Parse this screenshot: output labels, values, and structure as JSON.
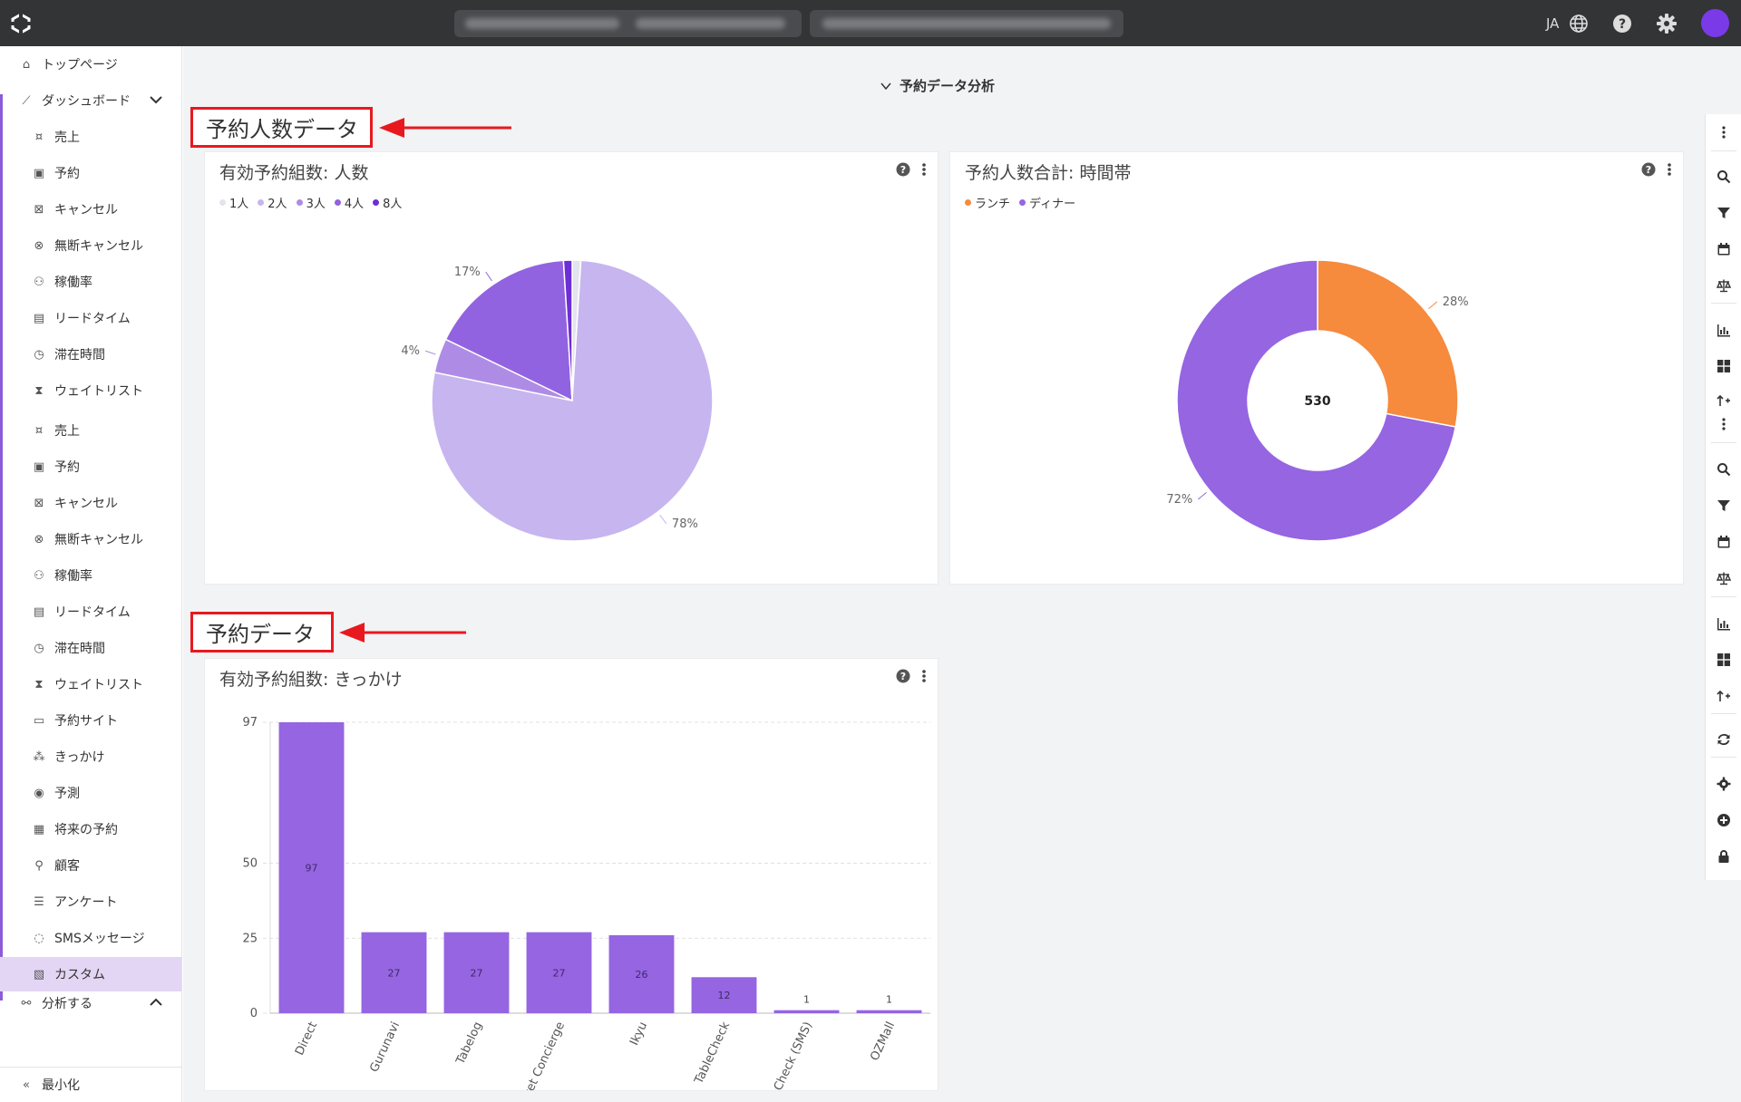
{
  "topbar": {
    "lang": "JA",
    "accent_color": "#7b3ae8"
  },
  "sidebar": {
    "items": [
      {
        "label": "トップページ",
        "icon": "home-icon"
      },
      {
        "label": "ダッシュボード",
        "icon": "chart-line-icon"
      },
      {
        "label": "売上",
        "icon": "cash-icon"
      },
      {
        "label": "予約",
        "icon": "calendar-check-icon"
      },
      {
        "label": "キャンセル",
        "icon": "calendar-x-icon"
      },
      {
        "label": "無断キャンセル",
        "icon": "circle-x-icon"
      },
      {
        "label": "稼働率",
        "icon": "people-icon"
      },
      {
        "label": "リードタイム",
        "icon": "calendar-icon"
      },
      {
        "label": "滞在時間",
        "icon": "timer-icon"
      },
      {
        "label": "ウェイトリスト",
        "icon": "hourglass-icon"
      },
      {
        "label": "売上",
        "icon": "cash-icon"
      },
      {
        "label": "予約",
        "icon": "calendar-check-icon"
      },
      {
        "label": "キャンセル",
        "icon": "calendar-x-icon"
      },
      {
        "label": "無断キャンセル",
        "icon": "circle-x-icon"
      },
      {
        "label": "稼働率",
        "icon": "people-icon"
      },
      {
        "label": "リードタイム",
        "icon": "calendar-icon"
      },
      {
        "label": "滞在時間",
        "icon": "timer-icon"
      },
      {
        "label": "ウェイトリスト",
        "icon": "hourglass-icon"
      },
      {
        "label": "予約サイト",
        "icon": "monitor-icon"
      },
      {
        "label": "きっかけ",
        "icon": "network-icon"
      },
      {
        "label": "予測",
        "icon": "eye-icon"
      },
      {
        "label": "将来の予約",
        "icon": "calendar-future-icon"
      },
      {
        "label": "顧客",
        "icon": "user-icon"
      },
      {
        "label": "アンケート",
        "icon": "survey-icon"
      },
      {
        "label": "SMSメッセージ",
        "icon": "chat-icon"
      },
      {
        "label": "カスタム",
        "icon": "custom-icon"
      },
      {
        "label": "分析する",
        "icon": "binoculars-icon"
      }
    ],
    "minimize": "最小化"
  },
  "main": {
    "section_title": "予約データ分析",
    "annot1": "予約人数データ",
    "annot2": "予約データ",
    "cards": {
      "pie_title": "有効予約組数: 人数",
      "donut_title": "予約人数合計: 時間帯",
      "bar_title": "有効予約組数: きっかけ"
    }
  },
  "chart_data": [
    {
      "type": "pie",
      "title": "有効予約組数: 人数",
      "labels": [
        "1人",
        "2人",
        "3人",
        "4人",
        "8人"
      ],
      "values": [
        1,
        78,
        4,
        17,
        1
      ],
      "slice_labels": [
        "",
        "78%",
        "4%",
        "17%",
        ""
      ],
      "colors": [
        "#e4e4ee",
        "#c7b5f0",
        "#ae8ce6",
        "#9263e0",
        "#6d2ed6"
      ]
    },
    {
      "type": "pie",
      "title": "予約人数合計: 時間帯",
      "donut": true,
      "center_label": "530",
      "labels": [
        "ランチ",
        "ディナー"
      ],
      "values": [
        28,
        72
      ],
      "slice_labels": [
        "28%",
        "72%"
      ],
      "colors": [
        "#f68a3d",
        "#9565e2"
      ]
    },
    {
      "type": "bar",
      "title": "有効予約組数: きっかけ",
      "categories": [
        "Direct",
        "Gurunavi",
        "Tabelog",
        "Pocket Concierge",
        "Ikyu",
        "TableCheck",
        "TableCheck (SMS)",
        "OZMall"
      ],
      "values": [
        97,
        27,
        27,
        27,
        26,
        12,
        1,
        1
      ],
      "yticks": [
        0,
        25,
        50,
        97
      ],
      "color": "#9565e2"
    }
  ]
}
